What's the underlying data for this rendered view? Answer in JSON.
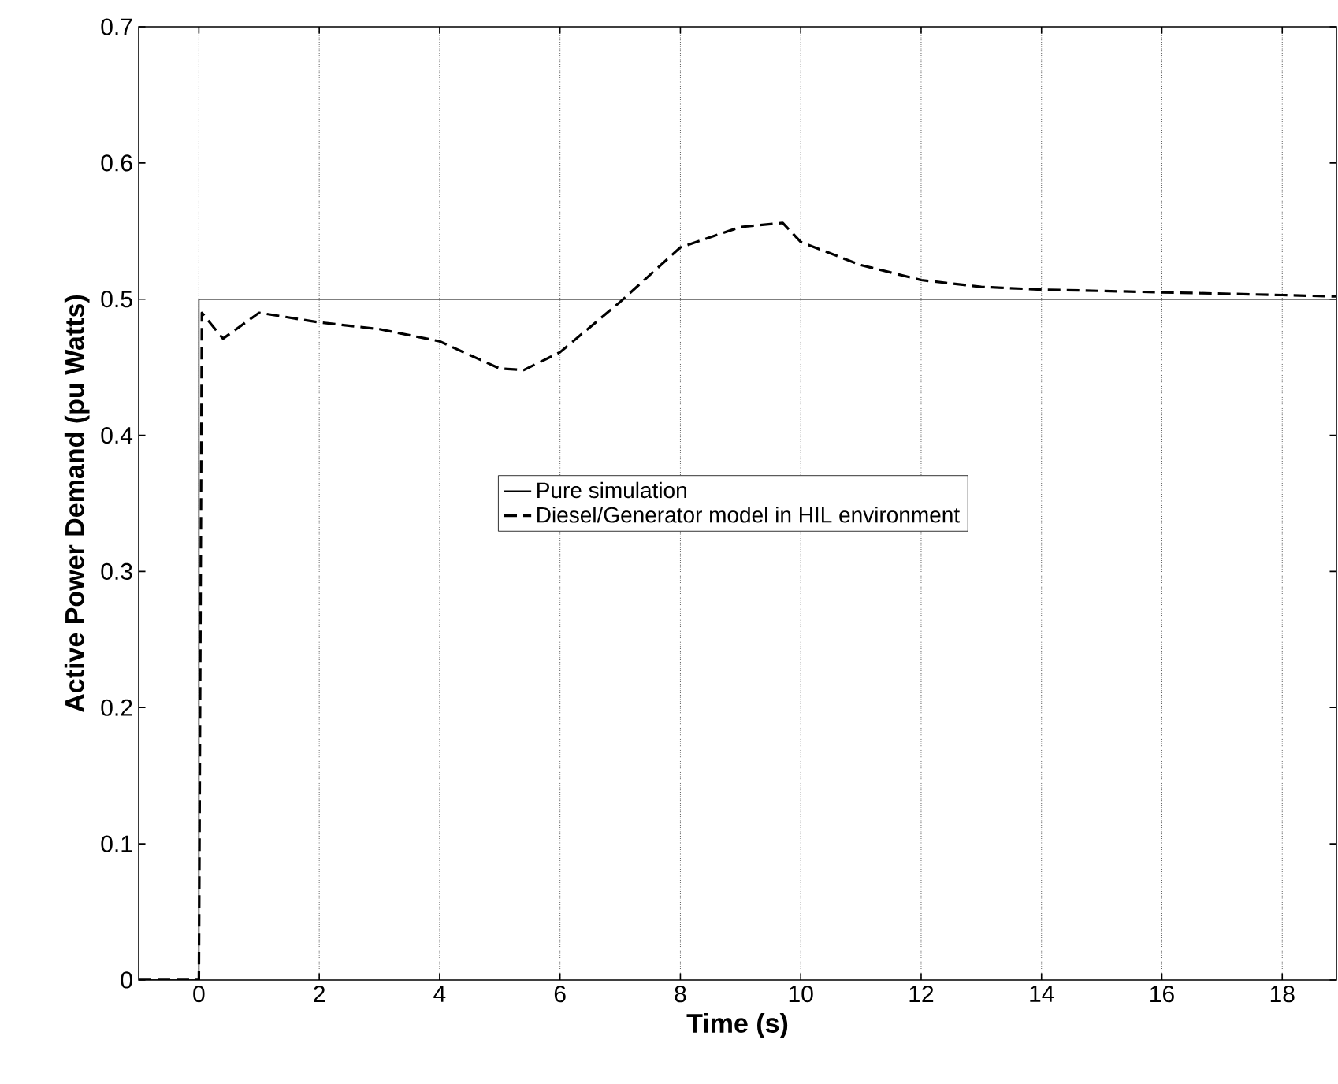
{
  "chart_data": {
    "type": "line",
    "xlabel": "Time (s)",
    "ylabel": "Active Power Demand (pu Watts)",
    "xlim": [
      -1,
      18.9
    ],
    "ylim": [
      0,
      0.7
    ],
    "xticks": [
      0,
      2,
      4,
      6,
      8,
      10,
      12,
      14,
      16,
      18
    ],
    "yticks": [
      0,
      0.1,
      0.2,
      0.3,
      0.4,
      0.5,
      0.6,
      0.7
    ],
    "grid": "x",
    "legend": "center",
    "series": [
      {
        "name": "Pure simulation",
        "color": "#000000",
        "line_style": "solid",
        "x": [
          -1,
          0,
          0,
          18.9
        ],
        "values": [
          0,
          0,
          0.5,
          0.5
        ]
      },
      {
        "name": "Diesel/Generator model in HIL environment",
        "color": "#000000",
        "line_style": "dashed",
        "x": [
          -1,
          0,
          0.05,
          0.4,
          1,
          2,
          3,
          4,
          5,
          5.4,
          6,
          7,
          8,
          9,
          9.7,
          10,
          11,
          12,
          13,
          14,
          16,
          18,
          18.9
        ],
        "values": [
          0,
          0,
          0.49,
          0.471,
          0.49,
          0.483,
          0.478,
          0.469,
          0.449,
          0.448,
          0.461,
          0.498,
          0.538,
          0.553,
          0.556,
          0.542,
          0.525,
          0.514,
          0.509,
          0.507,
          0.505,
          0.503,
          0.502
        ]
      }
    ]
  }
}
